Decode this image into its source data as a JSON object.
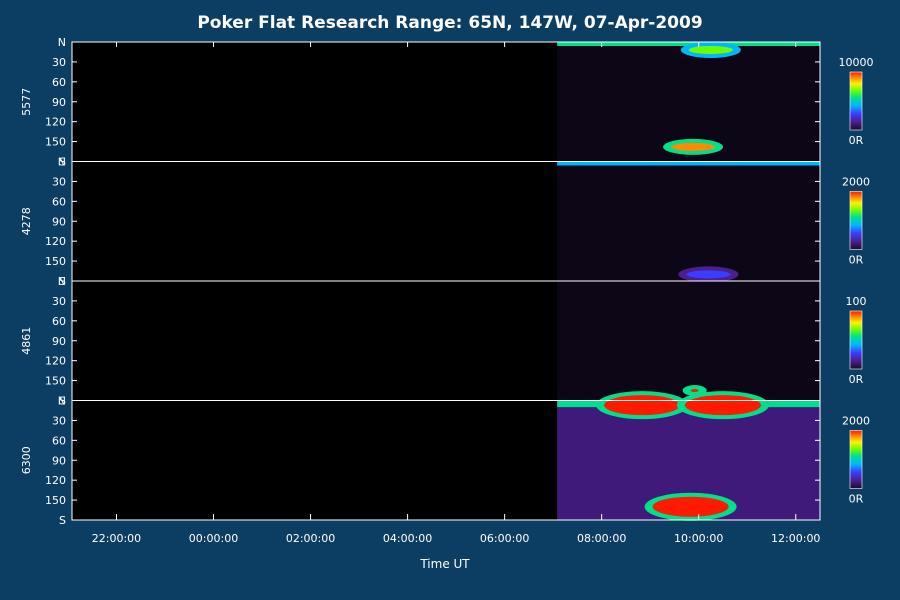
{
  "chart_data": {
    "type": "heatmap",
    "title": "Poker Flat Research Range: 65N, 147W, 07-Apr-2009",
    "xlabel": "Time UT",
    "x_ticks": [
      "22:00:00",
      "00:00:00",
      "02:00:00",
      "04:00:00",
      "06:00:00",
      "08:00:00",
      "10:00:00",
      "12:00:00"
    ],
    "x_range": [
      "21:05",
      "12:30"
    ],
    "data_start": "07:05",
    "y_ticks": [
      "N",
      "30",
      "60",
      "90",
      "120",
      "150",
      "S"
    ],
    "y_range": [
      0,
      180
    ],
    "panels": [
      {
        "ylabel": "5577",
        "colorbar": {
          "max_label": "10000",
          "min_label": "0R",
          "max": 10000,
          "min": 0
        },
        "features": [
          {
            "kind": "band",
            "y": [
              0,
              6
            ],
            "level": 0.55
          },
          {
            "kind": "blob",
            "t": "09:53",
            "y": 158,
            "level": 0.9
          },
          {
            "kind": "blob",
            "t": "10:15",
            "y": 12,
            "level": 0.6
          }
        ]
      },
      {
        "ylabel": "4278",
        "colorbar": {
          "max_label": "2000",
          "min_label": "0R",
          "max": 2000,
          "min": 0
        },
        "features": [
          {
            "kind": "band",
            "y": [
              0,
              6
            ],
            "level": 0.4
          },
          {
            "kind": "blob",
            "t": "10:12",
            "y": 170,
            "level": 0.3
          }
        ]
      },
      {
        "ylabel": "4861",
        "colorbar": {
          "max_label": "100",
          "min_label": "0R",
          "max": 100,
          "min": 0
        },
        "features": [
          {
            "kind": "blob",
            "t": "09:55",
            "y": 165,
            "level": 1.0
          }
        ]
      },
      {
        "ylabel": "6300",
        "colorbar": {
          "max_label": "2000",
          "min_label": "0R",
          "max": 2000,
          "min": 0
        },
        "features": [
          {
            "kind": "band",
            "y": [
              0,
              10
            ],
            "level": 0.55
          },
          {
            "kind": "blob",
            "t": "08:50",
            "y": 7,
            "level": 1.0
          },
          {
            "kind": "blob",
            "t": "10:30",
            "y": 7,
            "level": 1.0
          },
          {
            "kind": "blob",
            "t": "09:50",
            "y": 160,
            "level": 1.0
          }
        ]
      }
    ]
  },
  "colors": {
    "background": "#0c3d63",
    "plot_background": "#000000",
    "axis": "#ffffff",
    "colormap": [
      "#1a0b2e",
      "#4b1f8f",
      "#3a3cff",
      "#00b7ff",
      "#00e08a",
      "#6cff00",
      "#fff000",
      "#ff8a00",
      "#ff1a00"
    ]
  }
}
